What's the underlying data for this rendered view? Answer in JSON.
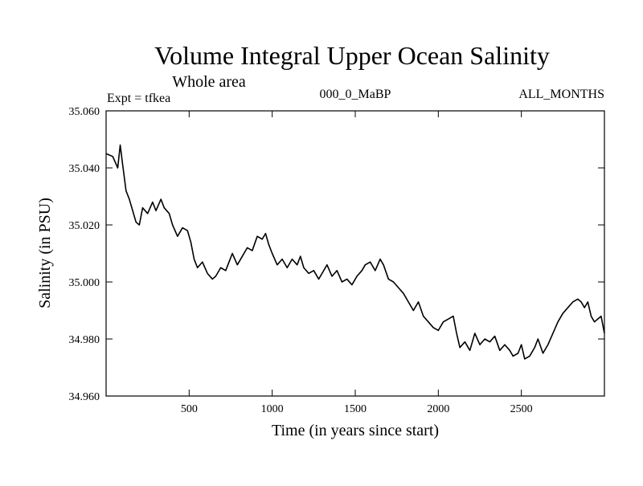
{
  "chart_data": {
    "type": "line",
    "title": "Volume Integral Upper Ocean Salinity",
    "subtitle": "Whole area",
    "header_left": "Expt = tfkea",
    "header_center": "000_0_MaBP",
    "header_right": "ALL_MONTHS",
    "xlabel": "Time (in years since start)",
    "ylabel": "Salinity (in PSU)",
    "xlim": [
      0,
      3000
    ],
    "ylim": [
      34.96,
      35.06
    ],
    "xticks": [
      500,
      1000,
      1500,
      2000,
      2500
    ],
    "xtick_labels": [
      "500",
      "1000",
      "1500",
      "2000",
      "2500"
    ],
    "yticks": [
      34.96,
      34.98,
      35.0,
      35.02,
      35.04,
      35.06
    ],
    "ytick_labels": [
      "34.960",
      "34.980",
      "35.000",
      "35.020",
      "35.040",
      "35.060"
    ],
    "grid": false,
    "line_color": "#000000",
    "series": [
      {
        "x": [
          0,
          40,
          70,
          85,
          100,
          120,
          140,
          160,
          180,
          200,
          220,
          250,
          280,
          300,
          330,
          350,
          380,
          400,
          430,
          460,
          490,
          510,
          530,
          550,
          580,
          610,
          640,
          660,
          690,
          720,
          740,
          760,
          790,
          820,
          850,
          880,
          910,
          940,
          960,
          980,
          1000,
          1030,
          1060,
          1090,
          1120,
          1150,
          1170,
          1190,
          1220,
          1250,
          1280,
          1300,
          1330,
          1360,
          1390,
          1420,
          1450,
          1480,
          1510,
          1540,
          1560,
          1590,
          1620,
          1650,
          1670,
          1700,
          1730,
          1760,
          1790,
          1820,
          1850,
          1880,
          1910,
          1940,
          1970,
          2000,
          2030,
          2060,
          2090,
          2110,
          2130,
          2160,
          2190,
          2220,
          2250,
          2280,
          2310,
          2340,
          2370,
          2400,
          2430,
          2450,
          2480,
          2500,
          2520,
          2550,
          2580,
          2600,
          2630,
          2660,
          2690,
          2720,
          2750,
          2780,
          2810,
          2840,
          2860,
          2880,
          2900,
          2920,
          2940,
          2960,
          2980,
          3000
        ],
        "y": [
          35.045,
          35.044,
          35.04,
          35.048,
          35.041,
          35.032,
          35.029,
          35.025,
          35.021,
          35.02,
          35.026,
          35.024,
          35.028,
          35.025,
          35.029,
          35.026,
          35.024,
          35.02,
          35.016,
          35.019,
          35.018,
          35.014,
          35.008,
          35.005,
          35.007,
          35.003,
          35.001,
          35.002,
          35.005,
          35.004,
          35.007,
          35.01,
          35.006,
          35.009,
          35.012,
          35.011,
          35.016,
          35.015,
          35.017,
          35.013,
          35.01,
          35.006,
          35.008,
          35.005,
          35.008,
          35.006,
          35.009,
          35.005,
          35.003,
          35.004,
          35.001,
          35.003,
          35.006,
          35.002,
          35.004,
          35.0,
          35.001,
          34.999,
          35.002,
          35.004,
          35.006,
          35.007,
          35.004,
          35.008,
          35.006,
          35.001,
          35.0,
          34.998,
          34.996,
          34.993,
          34.99,
          34.993,
          34.988,
          34.986,
          34.984,
          34.983,
          34.986,
          34.987,
          34.988,
          34.982,
          34.977,
          34.979,
          34.976,
          34.982,
          34.978,
          34.98,
          34.979,
          34.981,
          34.976,
          34.978,
          34.976,
          34.974,
          34.975,
          34.978,
          34.973,
          34.974,
          34.977,
          34.98,
          34.975,
          34.978,
          34.982,
          34.986,
          34.989,
          34.991,
          34.993,
          34.994,
          34.993,
          34.991,
          34.993,
          34.988,
          34.986,
          34.987,
          34.988,
          34.982
        ]
      }
    ]
  }
}
